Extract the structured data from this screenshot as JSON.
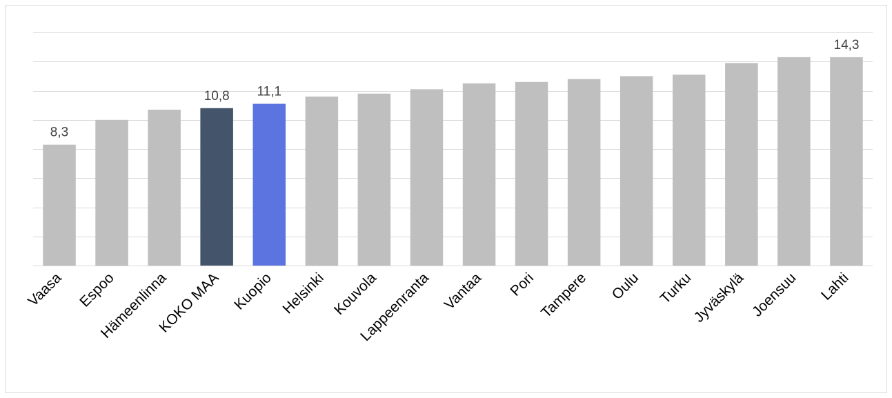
{
  "chart_data": {
    "type": "bar",
    "categories": [
      "Vaasa",
      "Espoo",
      "Hämeenlinna",
      "KOKO MAA",
      "Kuopio",
      "Helsinki",
      "Kouvola",
      "Lappeenranta",
      "Vantaa",
      "Pori",
      "Tampere",
      "Oulu",
      "Turku",
      "Jyväskylä",
      "Joensuu",
      "Lahti"
    ],
    "values": [
      8.3,
      10.0,
      10.7,
      10.8,
      11.1,
      11.6,
      11.8,
      12.1,
      12.5,
      12.6,
      12.8,
      13.0,
      13.1,
      13.9,
      14.3,
      14.3
    ],
    "data_labels": [
      "8,3",
      "",
      "",
      "10,8",
      "11,1",
      "",
      "",
      "",
      "",
      "",
      "",
      "",
      "",
      "",
      "",
      "14,3"
    ],
    "ylim": [
      0,
      16
    ],
    "ytick_step": 2,
    "grid": true,
    "colors": {
      "default": "#bfbfbf",
      "KOKO MAA": "#44546a",
      "Kuopio": "#5b74e0",
      "grid": "#d9d9d9",
      "label": "#404040"
    }
  }
}
